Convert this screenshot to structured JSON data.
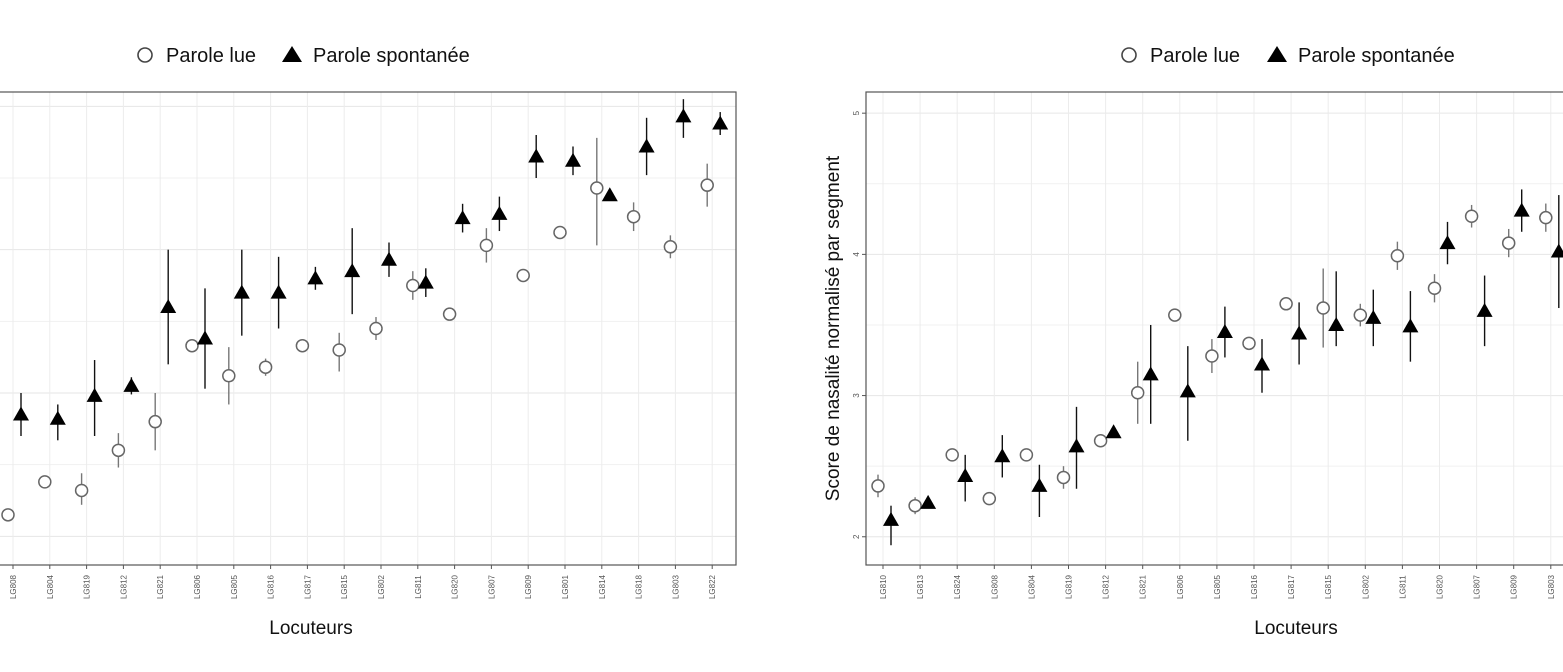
{
  "legend": {
    "read": "Parole lue",
    "spontaneous": "Parole spontanée"
  },
  "chart_data": [
    {
      "type": "scatter",
      "panel": "left",
      "xlabel": "Locuteurs",
      "ylabel": "",
      "ylim": [
        1.8,
        5.1
      ],
      "grid": true,
      "legend_position": "top",
      "categories": [
        "LG808",
        "LG804",
        "LG819",
        "LG812",
        "LG821",
        "LG806",
        "LG805",
        "LG816",
        "LG817",
        "LG815",
        "LG802",
        "LG811",
        "LG820",
        "LG807",
        "LG809",
        "LG801",
        "LG814",
        "LG818",
        "LG803",
        "LG822"
      ],
      "series": [
        {
          "name": "Parole lue",
          "marker": "open-circle",
          "values": [
            2.15,
            2.38,
            2.32,
            2.6,
            2.8,
            3.33,
            3.12,
            3.18,
            3.33,
            3.3,
            3.45,
            3.75,
            3.55,
            4.03,
            3.82,
            4.12,
            4.43,
            4.23,
            4.02,
            4.45
          ],
          "err_low": [
            null,
            null,
            0.1,
            0.12,
            0.2,
            null,
            0.2,
            0.06,
            null,
            0.15,
            0.08,
            0.1,
            null,
            0.12,
            null,
            null,
            0.4,
            0.1,
            0.08,
            0.15
          ],
          "err_high": [
            null,
            null,
            0.12,
            0.12,
            0.2,
            null,
            0.2,
            0.06,
            null,
            0.12,
            0.08,
            0.1,
            null,
            0.12,
            null,
            null,
            0.35,
            0.1,
            0.08,
            0.15
          ]
        },
        {
          "name": "Parole spontanée",
          "marker": "filled-triangle",
          "values": [
            2.85,
            2.82,
            2.98,
            3.05,
            3.6,
            3.38,
            3.7,
            3.7,
            3.8,
            3.85,
            3.93,
            3.77,
            4.22,
            4.25,
            4.65,
            4.62,
            4.38,
            4.72,
            4.93,
            4.88
          ],
          "err_low": [
            0.15,
            0.15,
            0.28,
            0.06,
            0.4,
            0.35,
            0.3,
            0.25,
            0.08,
            0.3,
            0.12,
            0.1,
            0.1,
            0.12,
            0.15,
            0.1,
            null,
            0.2,
            0.15,
            0.08
          ],
          "err_high": [
            0.15,
            0.1,
            0.25,
            0.06,
            0.4,
            0.35,
            0.3,
            0.25,
            0.08,
            0.3,
            0.12,
            0.1,
            0.1,
            0.12,
            0.15,
            0.1,
            null,
            0.2,
            0.12,
            0.08
          ]
        }
      ]
    },
    {
      "type": "scatter",
      "panel": "right",
      "xlabel": "Locuteurs",
      "ylabel": "Score de nasalité normalisé par segment",
      "ylim": [
        1.8,
        5.15
      ],
      "yticks": [
        2,
        3,
        4,
        5
      ],
      "grid": true,
      "legend_position": "top",
      "categories": [
        "LG810",
        "LG813",
        "LG824",
        "LG808",
        "LG804",
        "LG819",
        "LG812",
        "LG821",
        "LG806",
        "LG805",
        "LG816",
        "LG817",
        "LG815",
        "LG802",
        "LG811",
        "LG820",
        "LG807",
        "LG809",
        "LG803"
      ],
      "series": [
        {
          "name": "Parole lue",
          "marker": "open-circle",
          "values": [
            2.36,
            2.22,
            2.58,
            2.27,
            2.58,
            2.42,
            2.68,
            3.02,
            3.57,
            3.28,
            3.37,
            3.65,
            3.62,
            3.57,
            3.99,
            3.76,
            4.27,
            4.08,
            4.26
          ],
          "err_low": [
            0.08,
            0.06,
            null,
            null,
            null,
            0.08,
            null,
            0.22,
            null,
            0.12,
            null,
            null,
            0.28,
            0.08,
            0.1,
            0.1,
            0.08,
            0.1,
            0.1
          ],
          "err_high": [
            0.08,
            0.06,
            null,
            null,
            null,
            0.08,
            null,
            0.22,
            null,
            0.12,
            null,
            null,
            0.28,
            0.08,
            0.1,
            0.1,
            0.08,
            0.1,
            0.1
          ]
        },
        {
          "name": "Parole spontanée",
          "marker": "filled-triangle",
          "values": [
            2.12,
            2.24,
            2.43,
            2.57,
            2.36,
            2.64,
            2.74,
            3.15,
            3.03,
            3.45,
            3.22,
            3.44,
            3.5,
            3.55,
            3.49,
            4.08,
            3.6,
            4.31,
            4.02
          ],
          "err_low": [
            0.18,
            null,
            0.18,
            0.15,
            0.22,
            0.3,
            null,
            0.35,
            0.35,
            0.18,
            0.2,
            0.22,
            0.15,
            0.2,
            0.25,
            0.15,
            0.25,
            0.15,
            0.4
          ],
          "err_high": [
            0.1,
            null,
            0.15,
            0.15,
            0.15,
            0.28,
            null,
            0.35,
            0.32,
            0.18,
            0.18,
            0.22,
            0.38,
            0.2,
            0.25,
            0.15,
            0.25,
            0.15,
            0.4
          ]
        }
      ]
    }
  ]
}
